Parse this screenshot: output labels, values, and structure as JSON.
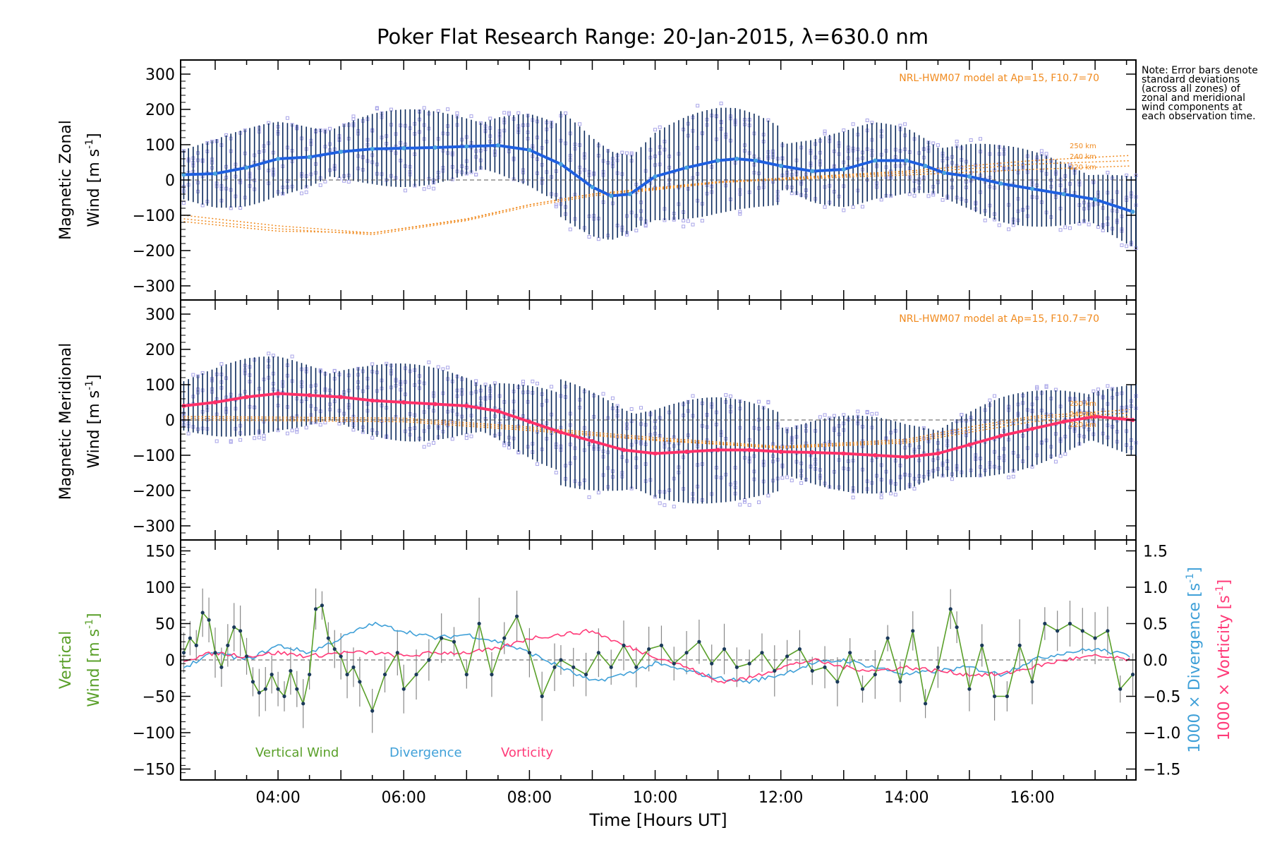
{
  "title": "Poker Flat Research Range: 20-Jan-2015, λ=630.0 nm",
  "note": "Note: Error bars denote standard deviations (across all zones) of zonal and meridional wind components at each observation time.",
  "xlabel": "Time [Hours UT]",
  "x_tick_labels": [
    "04:00",
    "06:00",
    "08:00",
    "10:00",
    "12:00",
    "14:00",
    "16:00"
  ],
  "model_label": "NRL-HWM07 model at Ap=15, F10.7=70",
  "alt_labels": [
    "250 km",
    "240 km",
    "220 km"
  ],
  "panels": {
    "zonal": {
      "ylabel_line1": "Magnetic Zonal",
      "ylabel_line2": "Wind [m s",
      "ylabel_exp": "-1",
      "ylabel_end": "]",
      "ytick_labels": [
        "300",
        "200",
        "100",
        "0",
        "−100",
        "−200",
        "−300"
      ]
    },
    "meridional": {
      "ylabel_line1": "Magnetic Meridional",
      "ylabel_line2": "Wind [m s",
      "ylabel_exp": "-1",
      "ylabel_end": "]",
      "ytick_labels": [
        "300",
        "200",
        "100",
        "0",
        "−100",
        "−200",
        "−300"
      ]
    },
    "vertical": {
      "ylabel_line1": "Vertical",
      "ylabel_line2": "Wind [m s",
      "ylabel_exp": "-1",
      "ylabel_end": "]",
      "ytick_labels": [
        "150",
        "100",
        "50",
        "0",
        "−50",
        "−100",
        "−150"
      ],
      "right_ytick_labels": [
        "1.5",
        "1.0",
        "0.5",
        "0.0",
        "−0.5",
        "−1.0",
        "−1.5"
      ],
      "right_label_div": "1000 × Divergence [s",
      "right_label_vor": "1000 × Vorticity [s",
      "right_label_exp": "-1",
      "right_label_end": "]",
      "legend": [
        "Vertical Wind",
        "Divergence",
        "Vorticity"
      ]
    }
  },
  "colors": {
    "zonal_mean": "#1e5fe0",
    "zonal_mean_light": "#4aa3df",
    "meridional_mean": "#ff3068",
    "model": "#f08a1e",
    "scatter": "#a8a4e8",
    "errorbar": "#0b2a5c",
    "vertical": "#5aa02a",
    "divergence": "#3fa0d8",
    "vorticity": "#ff3a78"
  },
  "chart_data": [
    {
      "type": "line",
      "panel": "zonal",
      "xlabel": "",
      "ylabel": "Magnetic Zonal Wind [m s-1]",
      "xlim": [
        2.45,
        17.65
      ],
      "ylim": [
        -340,
        340
      ],
      "x": [
        2.5,
        3,
        3.5,
        4,
        4.5,
        5,
        5.5,
        6,
        6.5,
        7,
        7.5,
        8,
        8.5,
        9,
        9.3,
        9.6,
        10,
        10.5,
        11,
        11.3,
        11.6,
        12,
        12.5,
        13,
        13.5,
        14,
        14.3,
        14.6,
        15,
        15.5,
        16,
        16.5,
        17,
        17.6
      ],
      "series": [
        {
          "values": [
            15,
            18,
            35,
            60,
            65,
            80,
            88,
            90,
            92,
            95,
            98,
            85,
            45,
            -20,
            -45,
            -40,
            10,
            35,
            55,
            60,
            55,
            40,
            25,
            30,
            55,
            55,
            40,
            20,
            10,
            -10,
            -25,
            -40,
            -55,
            -90
          ]
        }
      ],
      "model_series": [
        {
          "name": "250 km",
          "x": [
            2.5,
            4,
            5.5,
            7,
            8,
            9,
            10,
            11,
            12,
            13,
            14,
            15,
            16,
            17.6
          ],
          "values": [
            -100,
            -130,
            -150,
            -110,
            -70,
            -40,
            -25,
            -5,
            5,
            15,
            25,
            40,
            55,
            70
          ]
        },
        {
          "name": "240 km",
          "x": [
            2.5,
            4,
            5.5,
            7,
            8,
            9,
            10,
            11,
            12,
            13,
            14,
            15,
            16,
            17.6
          ],
          "values": [
            -110,
            -138,
            -155,
            -115,
            -75,
            -45,
            -28,
            -8,
            2,
            12,
            20,
            32,
            45,
            55
          ]
        },
        {
          "name": "220 km",
          "x": [
            2.5,
            4,
            5.5,
            7,
            8,
            9,
            10,
            11,
            12,
            13,
            14,
            15,
            16,
            17.6
          ],
          "values": [
            -118,
            -145,
            -150,
            -112,
            -70,
            -40,
            -22,
            -5,
            0,
            8,
            14,
            22,
            30,
            40
          ]
        }
      ]
    },
    {
      "type": "line",
      "panel": "meridional",
      "xlabel": "",
      "ylabel": "Magnetic Meridional Wind [m s-1]",
      "xlim": [
        2.45,
        17.65
      ],
      "ylim": [
        -340,
        340
      ],
      "x": [
        2.5,
        3,
        3.5,
        4,
        4.5,
        5,
        5.5,
        6,
        6.5,
        7,
        7.5,
        8,
        8.5,
        9,
        9.5,
        10,
        10.5,
        11,
        11.5,
        12,
        12.5,
        13,
        13.5,
        14,
        14.5,
        15,
        15.5,
        16,
        16.5,
        17,
        17.6
      ],
      "series": [
        {
          "values": [
            40,
            50,
            65,
            75,
            70,
            65,
            55,
            50,
            45,
            40,
            25,
            -5,
            -35,
            -60,
            -85,
            -95,
            -90,
            -85,
            -85,
            -90,
            -92,
            -95,
            -100,
            -105,
            -95,
            -70,
            -45,
            -25,
            -5,
            10,
            0
          ]
        }
      ],
      "model_series": [
        {
          "name": "250 km",
          "x": [
            2.5,
            4,
            6,
            8,
            10,
            12,
            14,
            15,
            16,
            17.6
          ],
          "values": [
            10,
            8,
            5,
            -20,
            -50,
            -75,
            -55,
            -20,
            10,
            30
          ]
        },
        {
          "name": "240 km",
          "x": [
            2.5,
            4,
            6,
            8,
            10,
            12,
            14,
            15,
            16,
            17.6
          ],
          "values": [
            5,
            3,
            0,
            -25,
            -55,
            -78,
            -60,
            -28,
            5,
            20
          ]
        },
        {
          "name": "220 km",
          "x": [
            2.5,
            4,
            6,
            8,
            10,
            12,
            14,
            15,
            16,
            17.6
          ],
          "values": [
            0,
            -2,
            -5,
            -30,
            -58,
            -80,
            -65,
            -35,
            -5,
            10
          ]
        }
      ]
    },
    {
      "type": "line",
      "panel": "vertical",
      "xlabel": "Time [Hours UT]",
      "ylabel": "Vertical Wind [m s-1]",
      "xlim": [
        2.45,
        17.65
      ],
      "ylim": [
        -165,
        165
      ],
      "y2lim": [
        -1.65,
        1.65
      ],
      "series": [
        {
          "name": "Vertical Wind",
          "x": [
            2.5,
            2.6,
            2.7,
            2.8,
            2.9,
            3.0,
            3.1,
            3.2,
            3.3,
            3.4,
            3.5,
            3.6,
            3.7,
            3.8,
            3.9,
            4.0,
            4.1,
            4.2,
            4.3,
            4.4,
            4.5,
            4.6,
            4.7,
            4.8,
            4.9,
            5.0,
            5.1,
            5.2,
            5.3,
            5.5,
            5.7,
            5.9,
            6.0,
            6.2,
            6.4,
            6.6,
            6.8,
            7.0,
            7.2,
            7.4,
            7.6,
            7.8,
            8.0,
            8.2,
            8.4,
            8.5,
            8.7,
            8.9,
            9.1,
            9.3,
            9.5,
            9.7,
            9.9,
            10.1,
            10.3,
            10.5,
            10.7,
            10.9,
            11.1,
            11.3,
            11.5,
            11.7,
            11.9,
            12.1,
            12.3,
            12.5,
            12.7,
            12.9,
            13.1,
            13.3,
            13.5,
            13.7,
            13.9,
            14.1,
            14.3,
            14.5,
            14.7,
            14.8,
            15.0,
            15.2,
            15.4,
            15.6,
            15.8,
            16.0,
            16.2,
            16.4,
            16.6,
            16.8,
            17.0,
            17.2,
            17.4,
            17.6
          ],
          "values": [
            10,
            30,
            20,
            65,
            55,
            10,
            -10,
            20,
            45,
            40,
            5,
            -30,
            -45,
            -40,
            -20,
            -40,
            -50,
            -15,
            -40,
            -60,
            -20,
            70,
            75,
            30,
            15,
            5,
            -20,
            -10,
            -30,
            -70,
            -20,
            10,
            -40,
            -20,
            0,
            30,
            25,
            -20,
            50,
            -20,
            30,
            60,
            10,
            -50,
            -10,
            0,
            -10,
            -20,
            10,
            -10,
            20,
            -10,
            15,
            20,
            -5,
            10,
            25,
            -5,
            15,
            -10,
            -5,
            10,
            -15,
            5,
            15,
            -15,
            -10,
            -30,
            10,
            -40,
            -20,
            30,
            -30,
            40,
            -60,
            -10,
            70,
            45,
            -40,
            20,
            -50,
            -50,
            20,
            -30,
            50,
            40,
            50,
            40,
            30,
            40,
            -40,
            -20
          ]
        },
        {
          "name": "Divergence",
          "axis": "right",
          "x": [
            2.5,
            3,
            3.5,
            4,
            4.5,
            5,
            5.5,
            6,
            6.5,
            7,
            7.5,
            8,
            8.5,
            9,
            9.5,
            10,
            10.5,
            11,
            11.5,
            12,
            12.5,
            13,
            13.5,
            14,
            14.5,
            15,
            15.5,
            16,
            16.5,
            17,
            17.6
          ],
          "values": [
            -0.1,
            0.1,
            0.0,
            0.2,
            0.1,
            0.3,
            0.5,
            0.4,
            0.3,
            0.35,
            0.25,
            0.1,
            -0.1,
            -0.3,
            -0.2,
            -0.05,
            -0.15,
            -0.25,
            -0.3,
            -0.2,
            -0.05,
            0.0,
            -0.1,
            -0.2,
            -0.15,
            -0.1,
            -0.2,
            0.0,
            0.1,
            0.15,
            0.05
          ]
        },
        {
          "name": "Vorticity",
          "axis": "right",
          "x": [
            2.5,
            3,
            3.5,
            4,
            4.5,
            5,
            5.5,
            6,
            6.5,
            7,
            7.5,
            8,
            8.5,
            9,
            9.5,
            10,
            10.5,
            11,
            11.5,
            12,
            12.5,
            13,
            13.5,
            14,
            14.5,
            15,
            15.5,
            16,
            16.5,
            17,
            17.6
          ],
          "values": [
            0.0,
            0.1,
            0.05,
            0.1,
            0.05,
            0.1,
            0.1,
            0.05,
            0.1,
            0.1,
            0.15,
            0.3,
            0.35,
            0.4,
            0.2,
            0.05,
            -0.1,
            -0.3,
            -0.25,
            -0.1,
            0.0,
            -0.1,
            -0.15,
            -0.1,
            -0.15,
            -0.2,
            -0.2,
            -0.1,
            0.0,
            0.05,
            0.0
          ]
        }
      ]
    }
  ]
}
